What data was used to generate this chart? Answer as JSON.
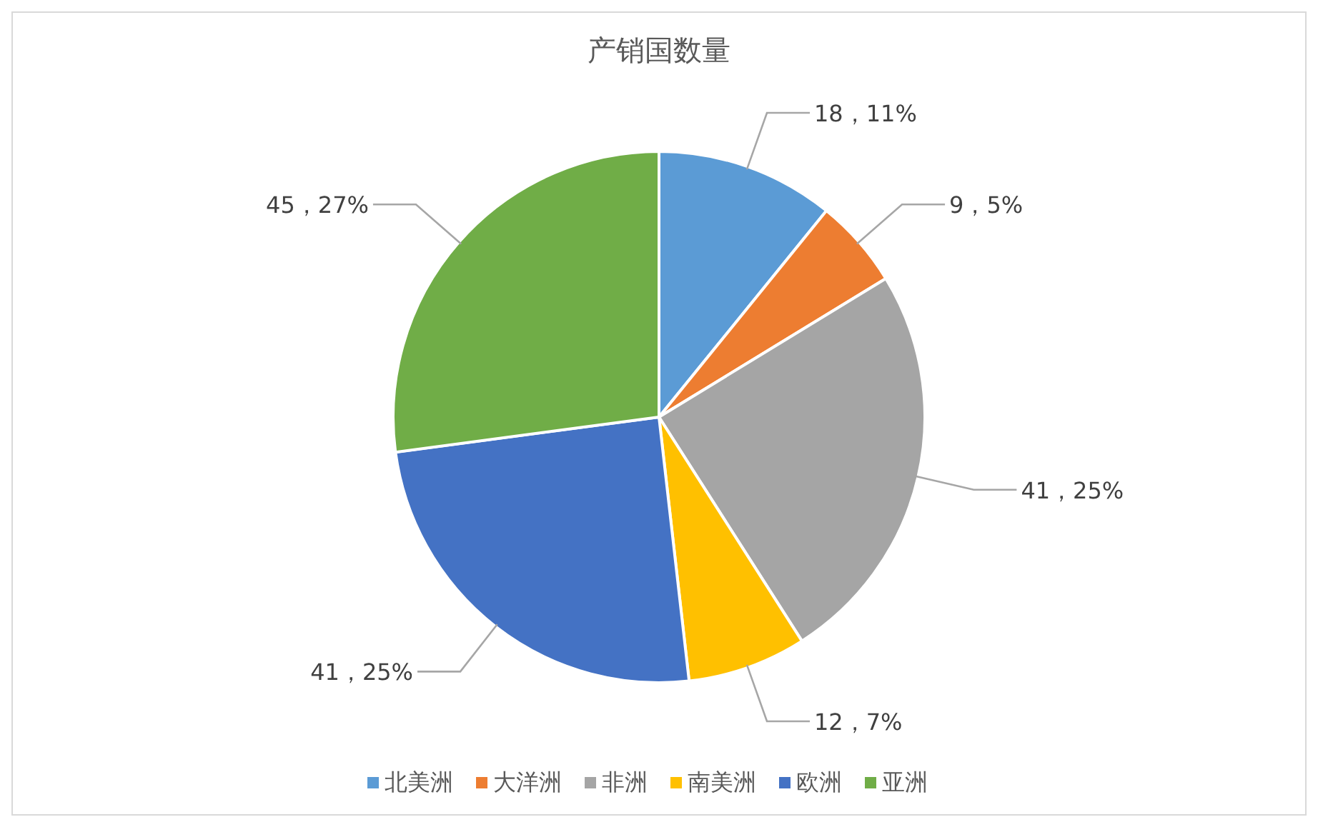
{
  "chart_data": {
    "type": "pie",
    "title": "产销国数量",
    "categories": [
      "北美洲",
      "大洋洲",
      "非洲",
      "南美洲",
      "欧洲",
      "亚洲"
    ],
    "values": [
      18,
      9,
      41,
      12,
      41,
      45
    ],
    "colors": [
      "#5b9bd5",
      "#ed7d31",
      "#a5a5a5",
      "#ffc000",
      "#4472c4",
      "#70ad47"
    ],
    "value_labels": [
      "18，11%",
      "9，5%",
      "41，25%",
      "12，7%",
      "41，25%",
      "45，27%"
    ],
    "legend": "bottom"
  }
}
